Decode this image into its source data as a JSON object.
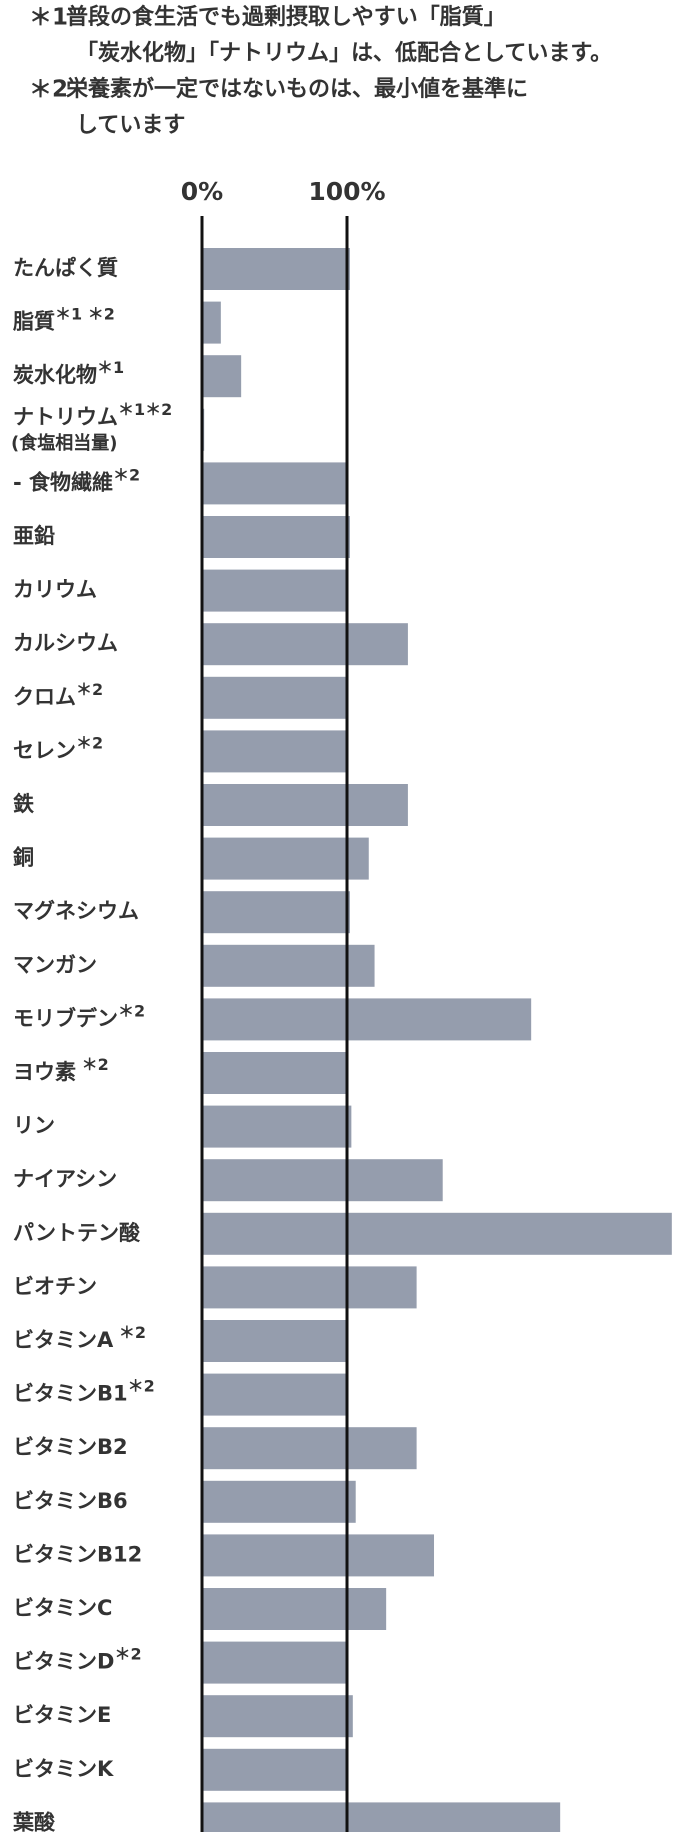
{
  "notes": [
    {
      "mark": "＊1",
      "lines": [
        "普段の食生活でも過剰摂取しやすい「脂質」",
        "「炭水化物」「ナトリウム」は、低配合としています。"
      ]
    },
    {
      "mark": "＊2",
      "lines": [
        "栄養素が一定ではないものは、最小値を基準に",
        "しています"
      ]
    }
  ],
  "chart_data": {
    "type": "hbar",
    "categories": [
      "たんぱく質",
      "脂質",
      "炭水化物",
      "ナトリウム",
      "- 食物繊維",
      "亜鉛",
      "カリウム",
      "カルシウム",
      "クロム",
      "セレン",
      "鉄",
      "銅",
      "マグネシウム",
      "マンガン",
      "モリブデン",
      "ヨウ素",
      "リン",
      "ナイアシン",
      "パントテン酸",
      "ビオチン",
      "ビタミンA",
      "ビタミンB1",
      "ビタミンB2",
      "ビタミンB6",
      "ビタミンB12",
      "ビタミンC",
      "ビタミンD",
      "ビタミンE",
      "ビタミンK",
      "葉酸"
    ],
    "category_notes": [
      null,
      "＊1 ＊2",
      "＊1",
      "＊1＊2",
      "＊2",
      null,
      null,
      null,
      "＊2",
      "＊2",
      null,
      null,
      null,
      null,
      "＊2",
      " ＊2",
      null,
      null,
      null,
      null,
      " ＊2",
      "＊2",
      null,
      null,
      null,
      null,
      "＊2",
      null,
      null,
      null
    ],
    "category_sublabels": [
      null,
      null,
      null,
      "(食塩相当量)",
      null,
      null,
      null,
      null,
      null,
      null,
      null,
      null,
      null,
      null,
      null,
      null,
      null,
      null,
      null,
      null,
      null,
      null,
      null,
      null,
      null,
      null,
      null,
      null,
      null,
      null
    ],
    "values": [
      102,
      13,
      27,
      1.5,
      100,
      102,
      100,
      142,
      100,
      100,
      142,
      115,
      102,
      119,
      227,
      100,
      103,
      166,
      324,
      148,
      100,
      100,
      148,
      106,
      160,
      127,
      100,
      104,
      100,
      247
    ],
    "color": "#959dad",
    "xlim": [
      0,
      325.5
    ],
    "xticks": [
      {
        "value": 0,
        "label": "0%"
      },
      {
        "value": 100,
        "label": "100%"
      }
    ],
    "grid": true
  }
}
